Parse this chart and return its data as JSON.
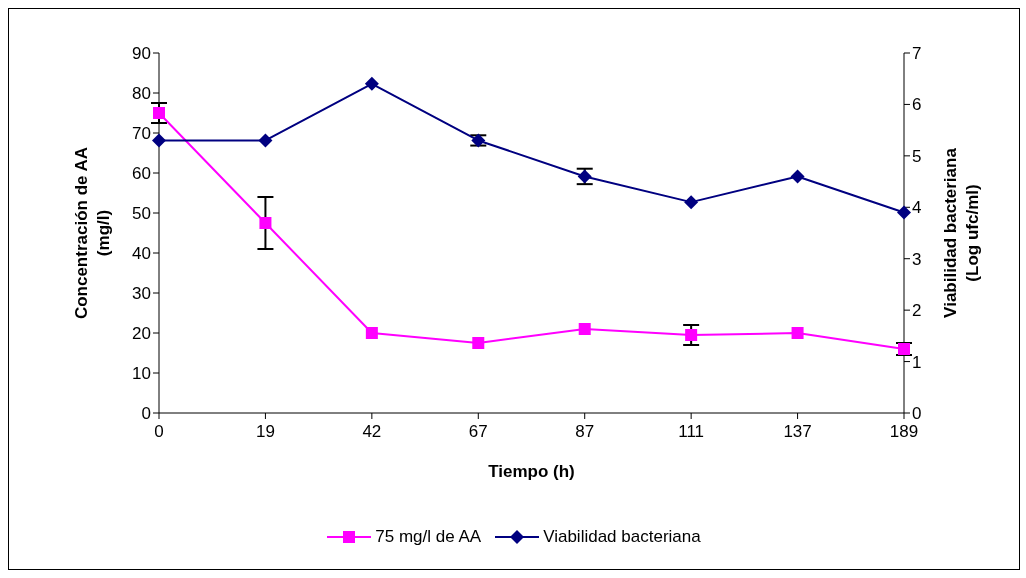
{
  "chart_data": {
    "type": "line",
    "xlabel": "Tiempo (h)",
    "ylabel": "Concentración de AA (mg/l)",
    "y2label": "Viabilidad bacteriana (Log ufc/ml)",
    "categories": [
      "0",
      "19",
      "42",
      "67",
      "87",
      "111",
      "137",
      "189"
    ],
    "series": [
      {
        "name": "75 mg/l de AA",
        "color": "#ff00ff",
        "marker": "square",
        "values": [
          75,
          47.5,
          20,
          17.5,
          21,
          19.5,
          20,
          16
        ],
        "errors": [
          2.5,
          6.5,
          null,
          null,
          null,
          2.5,
          null,
          1.5
        ]
      },
      {
        "name": "Viabilidad bacteriana",
        "color": "#000080",
        "marker": "diamond",
        "axis": "y2",
        "values": [
          5.3,
          5.3,
          6.4,
          5.3,
          4.6,
          4.1,
          4.6,
          3.9
        ],
        "errors": [
          null,
          null,
          null,
          0.1,
          0.15,
          null,
          null,
          null
        ]
      }
    ],
    "ylim": [
      0,
      90
    ],
    "yticks": [
      0,
      10,
      20,
      30,
      40,
      50,
      60,
      70,
      80,
      90
    ],
    "y2lim": [
      0,
      7
    ],
    "y2ticks": [
      0,
      1,
      2,
      3,
      4,
      5,
      6,
      7
    ],
    "grid": false,
    "legend": "bottom",
    "line_style": "solid"
  }
}
